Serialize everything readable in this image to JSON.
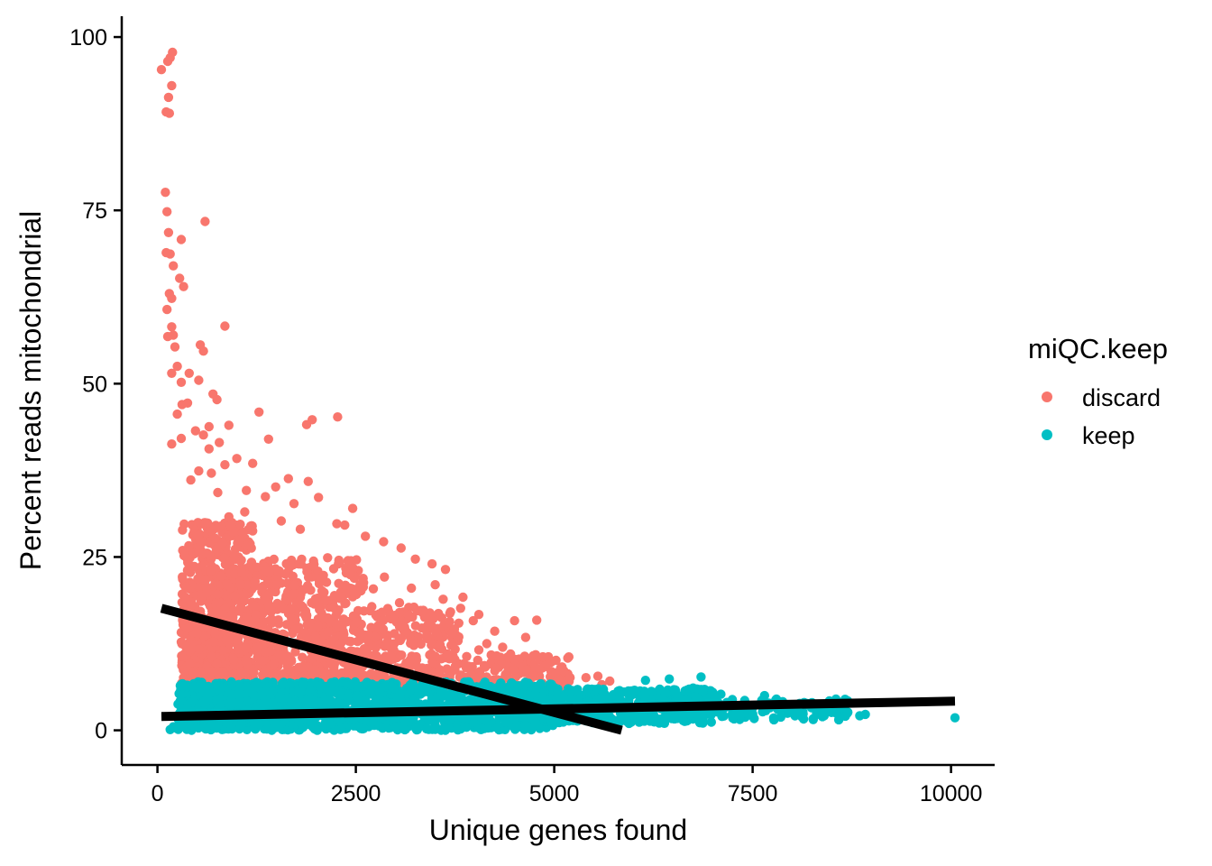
{
  "chart_data": {
    "type": "scatter",
    "xlabel": "Unique genes found",
    "ylabel": "Percent reads mitochondrial",
    "xlim": [
      -450,
      10550
    ],
    "ylim": [
      -5,
      103
    ],
    "x_ticks": [
      0,
      2500,
      5000,
      7500,
      10000
    ],
    "y_ticks": [
      0,
      25,
      50,
      75,
      100
    ],
    "grid": false,
    "legend": {
      "title": "miQC.keep",
      "placement": "right",
      "entries": [
        {
          "label": "discard",
          "color": "#F8766D"
        },
        {
          "label": "keep",
          "color": "#00BFC4"
        }
      ]
    },
    "series": [
      {
        "name": "discard",
        "color": "#F8766D",
        "points": [
          [
            50,
            95.3
          ],
          [
            130,
            96.5
          ],
          [
            160,
            97.0
          ],
          [
            190,
            97.8
          ],
          [
            140,
            91.3
          ],
          [
            110,
            89.2
          ],
          [
            150,
            89.0
          ],
          [
            180,
            93.0
          ],
          [
            100,
            77.6
          ],
          [
            120,
            74.8
          ],
          [
            140,
            71.8
          ],
          [
            160,
            68.7
          ],
          [
            110,
            68.9
          ],
          [
            200,
            67.0
          ],
          [
            300,
            70.8
          ],
          [
            280,
            65.2
          ],
          [
            330,
            64.0
          ],
          [
            150,
            63.0
          ],
          [
            180,
            62.3
          ],
          [
            120,
            60.7
          ],
          [
            600,
            73.4
          ],
          [
            180,
            58.2
          ],
          [
            850,
            58.3
          ],
          [
            200,
            57.0
          ],
          [
            130,
            56.8
          ],
          [
            220,
            55.3
          ],
          [
            540,
            55.6
          ],
          [
            580,
            54.7
          ],
          [
            250,
            52.5
          ],
          [
            180,
            51.5
          ],
          [
            300,
            50.2
          ],
          [
            400,
            51.5
          ],
          [
            520,
            50.5
          ],
          [
            700,
            48.5
          ],
          [
            750,
            47.7
          ],
          [
            310,
            47.0
          ],
          [
            380,
            47.2
          ],
          [
            250,
            45.6
          ],
          [
            1280,
            45.9
          ],
          [
            1950,
            44.8
          ],
          [
            2270,
            45.2
          ],
          [
            1880,
            44.1
          ],
          [
            900,
            44.0
          ],
          [
            650,
            43.8
          ],
          [
            480,
            43.2
          ],
          [
            580,
            42.6
          ],
          [
            300,
            42.1
          ],
          [
            1400,
            42.0
          ],
          [
            780,
            41.5
          ],
          [
            180,
            41.3
          ],
          [
            650,
            40.6
          ],
          [
            1000,
            39.2
          ],
          [
            850,
            38.3
          ],
          [
            1200,
            38.5
          ],
          [
            520,
            37.4
          ],
          [
            680,
            37.1
          ],
          [
            420,
            36.1
          ],
          [
            1650,
            36.3
          ],
          [
            1900,
            35.9
          ],
          [
            1490,
            35.1
          ],
          [
            1120,
            34.6
          ],
          [
            760,
            34.3
          ],
          [
            1360,
            33.7
          ],
          [
            2030,
            33.6
          ],
          [
            1720,
            32.7
          ],
          [
            2460,
            32.0
          ],
          [
            1100,
            31.5
          ],
          [
            900,
            30.8
          ],
          [
            1560,
            30.2
          ],
          [
            2260,
            29.8
          ],
          [
            2360,
            29.6
          ],
          [
            1800,
            29.0
          ],
          [
            2620,
            28.0
          ],
          [
            3070,
            26.3
          ],
          [
            2850,
            27.2
          ],
          [
            3250,
            24.7
          ],
          [
            3460,
            24.0
          ],
          [
            3630,
            23.2
          ],
          [
            3500,
            21.0
          ],
          [
            3850,
            19.2
          ],
          [
            3200,
            20.5
          ],
          [
            3600,
            18.9
          ],
          [
            3820,
            17.6
          ],
          [
            4050,
            16.7
          ],
          [
            3980,
            15.8
          ],
          [
            4250,
            14.3
          ],
          [
            4500,
            15.8
          ],
          [
            4780,
            15.9
          ],
          [
            4640,
            13.4
          ],
          [
            4350,
            12.0
          ],
          [
            4050,
            11.6
          ],
          [
            4500,
            10.2
          ],
          [
            4260,
            9.0
          ],
          [
            4650,
            8.7
          ],
          [
            4750,
            7.8
          ],
          [
            5020,
            8.3
          ],
          [
            5200,
            7.6
          ],
          [
            5400,
            7.6
          ],
          [
            5550,
            7.8
          ],
          [
            5700,
            7.1
          ],
          [
            5600,
            6.6
          ],
          [
            4850,
            6.8
          ],
          [
            4450,
            11.0
          ],
          [
            4150,
            12.5
          ],
          [
            3350,
            17.3
          ],
          [
            3050,
            18.4
          ],
          [
            2720,
            20.4
          ],
          [
            2860,
            22.1
          ]
        ],
        "dense_clusters": [
          {
            "x": [
              300,
              1200
            ],
            "y": [
              6,
              30
            ],
            "count": 900
          },
          {
            "x": [
              1200,
              2600
            ],
            "y": [
              6,
              25
            ],
            "count": 650
          },
          {
            "x": [
              2600,
              3800
            ],
            "y": [
              6,
              18
            ],
            "count": 300
          },
          {
            "x": [
              3800,
              5200
            ],
            "y": [
              6,
              11
            ],
            "count": 150
          }
        ]
      },
      {
        "name": "keep",
        "color": "#00BFC4",
        "points": [
          [
            8920,
            2.3
          ],
          [
            10050,
            1.8
          ],
          [
            6150,
            7.2
          ],
          [
            6450,
            7.4
          ],
          [
            6850,
            7.7
          ],
          [
            7650,
            5.0
          ],
          [
            7800,
            4.5
          ],
          [
            8150,
            4.0
          ],
          [
            8550,
            4.5
          ],
          [
            8300,
            3.0
          ],
          [
            7950,
            3.6
          ],
          [
            7400,
            4.3
          ],
          [
            7100,
            5.2
          ],
          [
            6750,
            6.1
          ],
          [
            8700,
            2.6
          ],
          [
            8850,
            2.1
          ],
          [
            160,
            0.1
          ],
          [
            240,
            0.3
          ],
          [
            260,
            1.8
          ],
          [
            200,
            0.5
          ]
        ],
        "dense_clusters": [
          {
            "x": [
              250,
              2500
            ],
            "y": [
              0,
              7
            ],
            "count": 900
          },
          {
            "x": [
              2500,
              5000
            ],
            "y": [
              0,
              7
            ],
            "count": 700
          },
          {
            "x": [
              5000,
              7000
            ],
            "y": [
              1,
              6
            ],
            "count": 400
          },
          {
            "x": [
              7000,
              8700
            ],
            "y": [
              1.5,
              4.5
            ],
            "count": 120
          }
        ]
      }
    ],
    "fit_lines": [
      {
        "x": [
          50,
          5850
        ],
        "y": [
          17.6,
          0
        ]
      },
      {
        "x": [
          50,
          10050
        ],
        "y": [
          2.0,
          4.2
        ]
      }
    ]
  }
}
